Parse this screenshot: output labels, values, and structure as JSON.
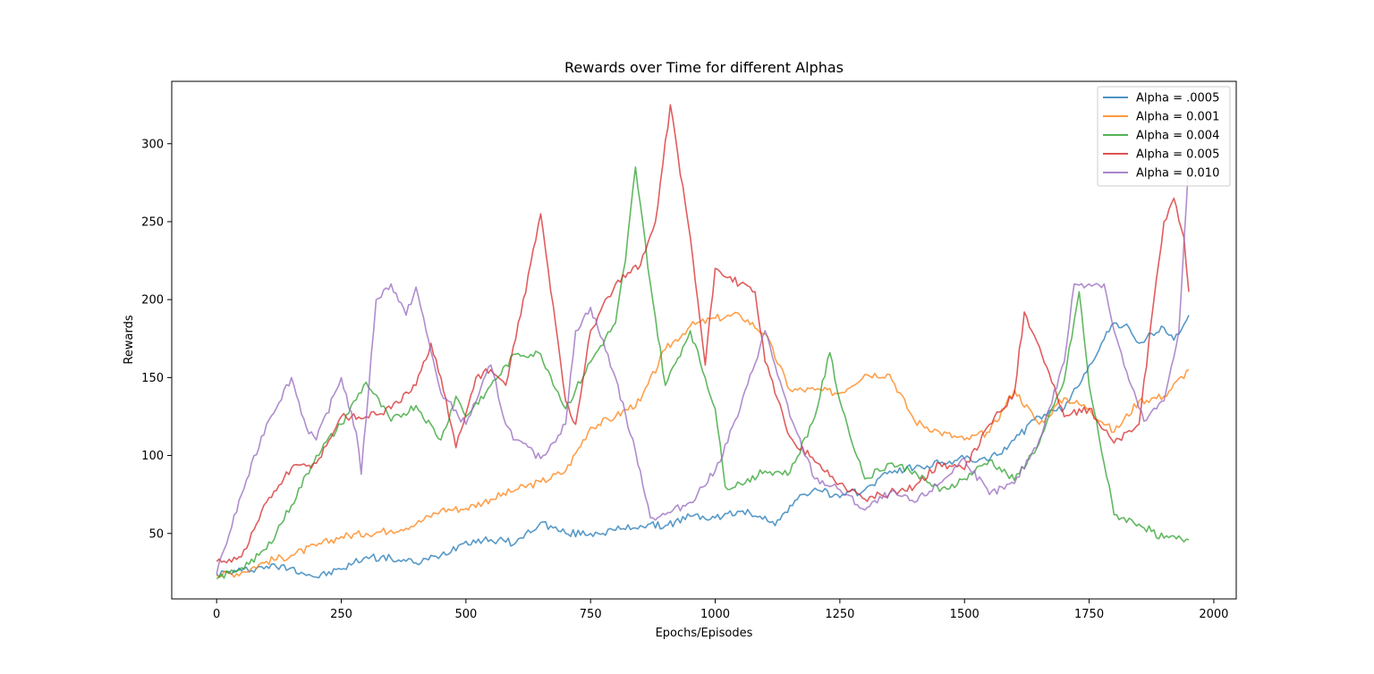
{
  "chart_data": {
    "type": "line",
    "title": "Rewards over Time for different Alphas",
    "xlabel": "Epochs/Episodes",
    "ylabel": "Rewards",
    "xlim": [
      -90,
      2045
    ],
    "ylim": [
      8,
      340
    ],
    "xticks": [
      0,
      250,
      500,
      750,
      1000,
      1250,
      1500,
      1750,
      2000
    ],
    "yticks": [
      50,
      100,
      150,
      200,
      250,
      300
    ],
    "grid": false,
    "legend_position": "top-right",
    "series": [
      {
        "name": "Alpha = .0005",
        "color": "#1f77b4",
        "points": [
          [
            0,
            24
          ],
          [
            50,
            26
          ],
          [
            100,
            29
          ],
          [
            150,
            28
          ],
          [
            200,
            22
          ],
          [
            250,
            27
          ],
          [
            300,
            35
          ],
          [
            350,
            34
          ],
          [
            400,
            31
          ],
          [
            450,
            36
          ],
          [
            500,
            45
          ],
          [
            550,
            46
          ],
          [
            600,
            44
          ],
          [
            650,
            57
          ],
          [
            700,
            50
          ],
          [
            750,
            50
          ],
          [
            800,
            52
          ],
          [
            850,
            55
          ],
          [
            900,
            55
          ],
          [
            950,
            61
          ],
          [
            1000,
            60
          ],
          [
            1050,
            64
          ],
          [
            1100,
            61
          ],
          [
            1120,
            55
          ],
          [
            1150,
            68
          ],
          [
            1200,
            79
          ],
          [
            1250,
            73
          ],
          [
            1300,
            78
          ],
          [
            1350,
            90
          ],
          [
            1400,
            92
          ],
          [
            1450,
            95
          ],
          [
            1500,
            98
          ],
          [
            1550,
            97
          ],
          [
            1600,
            110
          ],
          [
            1650,
            125
          ],
          [
            1700,
            130
          ],
          [
            1750,
            158
          ],
          [
            1800,
            185
          ],
          [
            1830,
            182
          ],
          [
            1850,
            172
          ],
          [
            1900,
            182
          ],
          [
            1920,
            174
          ],
          [
            1950,
            190
          ]
        ]
      },
      {
        "name": "Alpha = 0.001",
        "color": "#ff7f0e",
        "points": [
          [
            0,
            23
          ],
          [
            50,
            25
          ],
          [
            100,
            32
          ],
          [
            150,
            36
          ],
          [
            200,
            42
          ],
          [
            250,
            48
          ],
          [
            300,
            50
          ],
          [
            350,
            52
          ],
          [
            400,
            56
          ],
          [
            450,
            65
          ],
          [
            500,
            66
          ],
          [
            550,
            72
          ],
          [
            600,
            78
          ],
          [
            650,
            83
          ],
          [
            700,
            90
          ],
          [
            750,
            118
          ],
          [
            800,
            125
          ],
          [
            850,
            135
          ],
          [
            900,
            168
          ],
          [
            950,
            183
          ],
          [
            1000,
            188
          ],
          [
            1050,
            190
          ],
          [
            1100,
            178
          ],
          [
            1150,
            142
          ],
          [
            1200,
            142
          ],
          [
            1250,
            140
          ],
          [
            1300,
            152
          ],
          [
            1350,
            152
          ],
          [
            1400,
            122
          ],
          [
            1450,
            115
          ],
          [
            1500,
            110
          ],
          [
            1550,
            115
          ],
          [
            1600,
            142
          ],
          [
            1650,
            120
          ],
          [
            1700,
            137
          ],
          [
            1750,
            130
          ],
          [
            1800,
            115
          ],
          [
            1850,
            135
          ],
          [
            1900,
            138
          ],
          [
            1950,
            155
          ]
        ]
      },
      {
        "name": "Alpha = 0.004",
        "color": "#2ca02c",
        "points": [
          [
            0,
            21
          ],
          [
            50,
            28
          ],
          [
            100,
            40
          ],
          [
            150,
            68
          ],
          [
            200,
            100
          ],
          [
            250,
            120
          ],
          [
            300,
            147
          ],
          [
            350,
            122
          ],
          [
            400,
            132
          ],
          [
            450,
            110
          ],
          [
            480,
            138
          ],
          [
            500,
            125
          ],
          [
            550,
            145
          ],
          [
            600,
            165
          ],
          [
            650,
            165
          ],
          [
            700,
            130
          ],
          [
            750,
            160
          ],
          [
            800,
            185
          ],
          [
            820,
            225
          ],
          [
            840,
            285
          ],
          [
            870,
            210
          ],
          [
            900,
            145
          ],
          [
            950,
            180
          ],
          [
            1000,
            130
          ],
          [
            1020,
            80
          ],
          [
            1050,
            82
          ],
          [
            1100,
            90
          ],
          [
            1150,
            89
          ],
          [
            1200,
            125
          ],
          [
            1230,
            166
          ],
          [
            1250,
            135
          ],
          [
            1300,
            85
          ],
          [
            1350,
            95
          ],
          [
            1400,
            90
          ],
          [
            1450,
            77
          ],
          [
            1500,
            85
          ],
          [
            1550,
            97
          ],
          [
            1600,
            84
          ],
          [
            1650,
            108
          ],
          [
            1700,
            148
          ],
          [
            1730,
            205
          ],
          [
            1750,
            145
          ],
          [
            1800,
            62
          ],
          [
            1850,
            56
          ],
          [
            1900,
            47
          ],
          [
            1950,
            46
          ]
        ]
      },
      {
        "name": "Alpha = 0.005",
        "color": "#d62728",
        "points": [
          [
            0,
            32
          ],
          [
            50,
            35
          ],
          [
            100,
            70
          ],
          [
            150,
            92
          ],
          [
            200,
            95
          ],
          [
            250,
            125
          ],
          [
            300,
            125
          ],
          [
            350,
            130
          ],
          [
            400,
            145
          ],
          [
            430,
            172
          ],
          [
            450,
            150
          ],
          [
            480,
            105
          ],
          [
            520,
            150
          ],
          [
            550,
            155
          ],
          [
            580,
            145
          ],
          [
            600,
            175
          ],
          [
            650,
            255
          ],
          [
            700,
            135
          ],
          [
            720,
            120
          ],
          [
            750,
            180
          ],
          [
            800,
            210
          ],
          [
            850,
            222
          ],
          [
            880,
            250
          ],
          [
            910,
            325
          ],
          [
            950,
            240
          ],
          [
            980,
            158
          ],
          [
            1000,
            220
          ],
          [
            1050,
            210
          ],
          [
            1080,
            205
          ],
          [
            1100,
            160
          ],
          [
            1150,
            112
          ],
          [
            1200,
            96
          ],
          [
            1250,
            82
          ],
          [
            1300,
            72
          ],
          [
            1350,
            76
          ],
          [
            1400,
            80
          ],
          [
            1450,
            95
          ],
          [
            1500,
            91
          ],
          [
            1550,
            120
          ],
          [
            1600,
            140
          ],
          [
            1620,
            192
          ],
          [
            1650,
            170
          ],
          [
            1700,
            125
          ],
          [
            1750,
            130
          ],
          [
            1800,
            108
          ],
          [
            1850,
            120
          ],
          [
            1900,
            250
          ],
          [
            1920,
            265
          ],
          [
            1940,
            240
          ],
          [
            1950,
            205
          ]
        ]
      },
      {
        "name": "Alpha = 0.010",
        "color": "#9467bd",
        "points": [
          [
            0,
            24
          ],
          [
            50,
            75
          ],
          [
            100,
            120
          ],
          [
            150,
            150
          ],
          [
            180,
            118
          ],
          [
            200,
            110
          ],
          [
            250,
            150
          ],
          [
            280,
            115
          ],
          [
            290,
            88
          ],
          [
            320,
            200
          ],
          [
            350,
            210
          ],
          [
            380,
            190
          ],
          [
            400,
            208
          ],
          [
            420,
            180
          ],
          [
            450,
            140
          ],
          [
            500,
            120
          ],
          [
            550,
            158
          ],
          [
            580,
            120
          ],
          [
            600,
            110
          ],
          [
            650,
            98
          ],
          [
            700,
            120
          ],
          [
            720,
            180
          ],
          [
            750,
            195
          ],
          [
            800,
            150
          ],
          [
            850,
            90
          ],
          [
            870,
            60
          ],
          [
            900,
            62
          ],
          [
            950,
            70
          ],
          [
            1000,
            90
          ],
          [
            1050,
            130
          ],
          [
            1100,
            180
          ],
          [
            1150,
            125
          ],
          [
            1200,
            85
          ],
          [
            1250,
            78
          ],
          [
            1300,
            65
          ],
          [
            1350,
            76
          ],
          [
            1400,
            70
          ],
          [
            1450,
            82
          ],
          [
            1500,
            98
          ],
          [
            1550,
            75
          ],
          [
            1600,
            82
          ],
          [
            1650,
            110
          ],
          [
            1700,
            160
          ],
          [
            1720,
            210
          ],
          [
            1750,
            210
          ],
          [
            1780,
            210
          ],
          [
            1800,
            180
          ],
          [
            1830,
            148
          ],
          [
            1860,
            122
          ],
          [
            1900,
            135
          ],
          [
            1930,
            180
          ],
          [
            1950,
            290
          ]
        ]
      }
    ]
  }
}
